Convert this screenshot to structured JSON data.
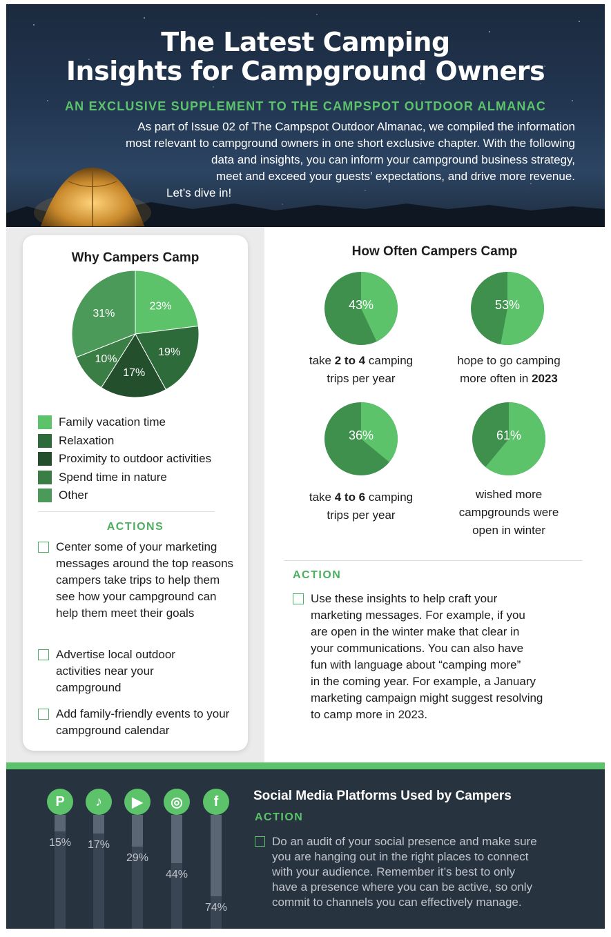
{
  "header": {
    "title_line1": "The Latest Camping",
    "title_line2": "Insights for Campground Owners",
    "subtitle": "AN EXCLUSIVE SUPPLEMENT TO THE CAMPSPOT OUTDOOR ALMANAC",
    "intro_lines": [
      "As part of Issue 02 of The Campspot Outdoor Almanac, we compiled the information",
      "most relevant to campground owners in one short exclusive chapter. With the following",
      "data and insights, you can inform your campground business strategy,",
      "meet and exceed your guests’ expectations, and drive more revenue."
    ],
    "intro_last": "Let’s dive in!"
  },
  "why": {
    "title": "Why Campers Camp",
    "actions_heading": "ACTIONS",
    "actions": [
      "Center some of your marketing messages around the top reasons campers take trips to help them see how your campground can help them meet their goals",
      "Advertise local outdoor activities near your campground",
      "Add family-friendly events to your campground calendar"
    ]
  },
  "how": {
    "title": "How Often Campers Camp",
    "items": [
      {
        "value_label": "43%",
        "cap_a": "take ",
        "cap_b": "2 to 4",
        "cap_c": " camping",
        "cap_d": "trips per year"
      },
      {
        "value_label": "53%",
        "cap_a": "hope to go camping",
        "cap_b": "more often in ",
        "cap_c": "2023",
        "cap_d": ""
      },
      {
        "value_label": "36%",
        "cap_a": "take ",
        "cap_b": "4 to 6",
        "cap_c": " camping",
        "cap_d": "trips per year"
      },
      {
        "value_label": "61%",
        "cap_a": "wished more",
        "cap_b": "campgrounds were",
        "cap_c": "open in winter",
        "cap_d": ""
      }
    ],
    "action_heading": "ACTION",
    "action_lines": [
      "Use these insights to help craft your",
      "marketing messages. For example, if you",
      "are open in the winter make that clear in",
      "your communications. You can also have",
      "fun with language about “camping more”",
      "in the coming year.  For example, a January",
      "marketing campaign might suggest resolving",
      "to camp more in 2023."
    ]
  },
  "social": {
    "title": "Social Media Platforms Used by Campers",
    "action_heading": "ACTION",
    "action_lines": [
      "Do an audit of your social presence and make sure",
      "you are hanging out in the right places to connect",
      "with your audience. Remember it’s best to only",
      "have a presence where you can be active, so only",
      "commit to channels you can effectively manage."
    ]
  },
  "colors": {
    "green_light": "#5cc36b",
    "green_mid": "#3f8f4d",
    "green_dark": "#2e6b3a",
    "green_darkest": "#244f2c",
    "navy": "#283340"
  },
  "chart_data": [
    {
      "type": "pie",
      "title": "Why Campers Camp",
      "labels": [
        "Family vacation time",
        "Relaxation",
        "Proximity to outdoor activities",
        "Spend time in nature",
        "Other"
      ],
      "values": [
        23,
        19,
        17,
        10,
        31
      ],
      "value_labels": [
        "23%",
        "19%",
        "17%",
        "10%",
        "31%"
      ],
      "colors": [
        "#5cc36b",
        "#2e6b3a",
        "#244f2c",
        "#3a7d45",
        "#4c9a59"
      ]
    },
    {
      "type": "pie",
      "title": "How Often Campers Camp",
      "labels": [
        "take 2 to 4 camping trips per year",
        "hope to go camping more often in 2023",
        "take 4 to 6 camping trips per year",
        "wished more campgrounds were open in winter"
      ],
      "values": [
        43,
        53,
        36,
        61
      ]
    },
    {
      "type": "bar",
      "title": "Social Media Platforms Used by Campers",
      "categories": [
        "Pinterest",
        "TikTok",
        "YouTube",
        "Instagram",
        "Facebook"
      ],
      "icons": [
        "pinterest-icon",
        "tiktok-icon",
        "youtube-icon",
        "instagram-icon",
        "facebook-icon"
      ],
      "values": [
        15,
        17,
        29,
        44,
        74
      ],
      "value_labels": [
        "15%",
        "17%",
        "29%",
        "44%",
        "74%"
      ],
      "ylim": [
        0,
        100
      ]
    }
  ]
}
